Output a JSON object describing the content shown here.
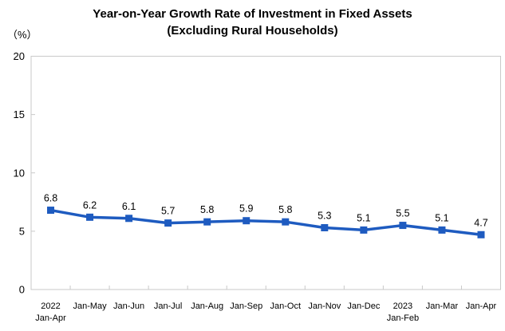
{
  "title": {
    "line1": "Year-on-Year Growth Rate of Investment in Fixed Assets",
    "line2": "(Excluding Rural Households)"
  },
  "y_axis": {
    "unit_label": "（%）",
    "tick_labels": [
      "20",
      "15",
      "10",
      "5",
      "0"
    ]
  },
  "x_axis": {
    "labels": [
      "2022 Jan-Apr",
      "Jan-May",
      "Jan-Jun",
      "Jan-Jul",
      "Jan-Aug",
      "Jan-Sep",
      "Jan-Oct",
      "Jan-Nov",
      "Jan-Dec",
      "2023 Jan-Feb",
      "Jan-Mar",
      "Jan-Apr"
    ]
  },
  "chart_data": {
    "type": "line",
    "title": "Year-on-Year Growth Rate of Investment in Fixed Assets (Excluding Rural Households)",
    "ylabel": "（%）",
    "categories": [
      "2022 Jan-Apr",
      "Jan-May",
      "Jan-Jun",
      "Jan-Jul",
      "Jan-Aug",
      "Jan-Sep",
      "Jan-Oct",
      "Jan-Nov",
      "Jan-Dec",
      "2023 Jan-Feb",
      "Jan-Mar",
      "Jan-Apr"
    ],
    "category_display_lines": [
      [
        "2022",
        "Jan-Apr"
      ],
      [
        "Jan-May"
      ],
      [
        "Jan-Jun"
      ],
      [
        "Jan-Jul"
      ],
      [
        "Jan-Aug"
      ],
      [
        "Jan-Sep"
      ],
      [
        "Jan-Oct"
      ],
      [
        "Jan-Nov"
      ],
      [
        "Jan-Dec"
      ],
      [
        "2023",
        "Jan-Feb"
      ],
      [
        "Jan-Mar"
      ],
      [
        "Jan-Apr"
      ]
    ],
    "values": [
      6.8,
      6.2,
      6.1,
      5.7,
      5.8,
      5.9,
      5.8,
      5.3,
      5.1,
      5.5,
      5.1,
      4.7
    ],
    "data_labels": [
      "6.8",
      "6.2",
      "6.1",
      "5.7",
      "5.8",
      "5.9",
      "5.8",
      "5.3",
      "5.1",
      "5.5",
      "5.1",
      "4.7"
    ],
    "ylim": [
      0,
      20
    ],
    "yticks": [
      0,
      5,
      10,
      15,
      20
    ],
    "grid": false,
    "legend_position": "none",
    "marker": "square"
  },
  "colors": {
    "line": "#1e5bc0",
    "marker": "#1e5bc0",
    "axis_border": "#c9c9c9",
    "tick": "#c9c9c9",
    "text": "#000000",
    "background": "#ffffff"
  }
}
